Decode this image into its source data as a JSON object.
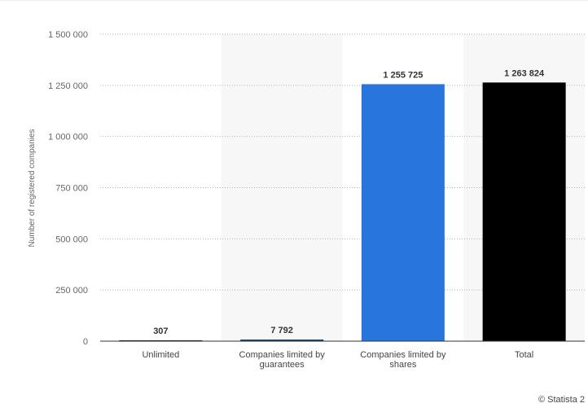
{
  "chart_data": {
    "type": "bar",
    "categories": [
      "Unlimited",
      "Companies limited by guarantees",
      "Companies limited by shares",
      "Total"
    ],
    "category_lines": [
      [
        "Unlimited"
      ],
      [
        "Companies limited by",
        "guarantees"
      ],
      [
        "Companies limited by",
        "shares"
      ],
      [
        "Total"
      ]
    ],
    "values": [
      307,
      7792,
      1255725,
      1263824
    ],
    "data_labels": [
      "307",
      "7 792",
      "1 255 725",
      "1 263 824"
    ],
    "bar_colors": [
      "#000000",
      "#0c3c78",
      "#2876dd",
      "#000000"
    ],
    "ylabel": "Number of registered companies",
    "ylim": [
      0,
      1500000
    ],
    "yticks": [
      0,
      250000,
      500000,
      750000,
      1000000,
      1250000,
      1500000
    ],
    "ytick_labels": [
      "0",
      "250 000",
      "500 000",
      "750 000",
      "1 000 000",
      "1 250 000",
      "1 500 000"
    ],
    "grid": true,
    "legend": "none"
  },
  "footer": {
    "credit": "© Statista 2"
  }
}
